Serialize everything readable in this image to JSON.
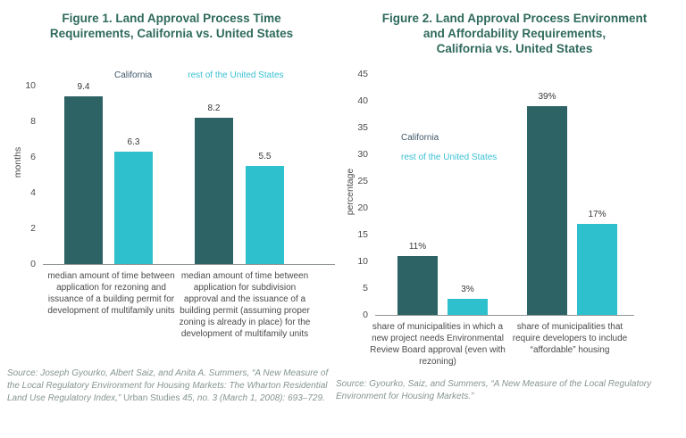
{
  "colors": {
    "california_bar": "#2e6366",
    "rest_bar": "#2fc0cd",
    "title_text": "#2f6a5c",
    "legend_california_text": "#41586a",
    "legend_rest_text": "#3bc1d3",
    "source_text": "#85968f",
    "axis_line": "#8f9695"
  },
  "chart_data": [
    {
      "type": "bar",
      "title": "Figure 1. Land Approval Process Time\nRequirements, California vs. United States",
      "ylabel": "months",
      "ylim": [
        0,
        10
      ],
      "ytick_step": 2,
      "grid": false,
      "legend": [
        "California",
        "rest of the United States"
      ],
      "legend_position": "top-horizontal",
      "categories": [
        "median amount of time between application for rezoning and issuance of a building permit for development of multifamily units",
        "median amount of time between application for subdivision approval and the issuance of a building permit (assuming proper zoning is already in place) for the development of multifamily units"
      ],
      "series": [
        {
          "name": "California",
          "color": "#2e6366",
          "values": [
            9.4,
            8.2
          ],
          "value_labels": [
            "9.4",
            "8.2"
          ]
        },
        {
          "name": "rest of the United States",
          "color": "#2fc0cd",
          "values": [
            6.3,
            5.5
          ],
          "value_labels": [
            "6.3",
            "5.5"
          ]
        }
      ],
      "source": {
        "italic1": "Source: Joseph Gyourko, Albert Saiz, and Anita A. Summers, “A New Measure of the Local Regulatory Environment for Housing Markets: The Wharton Residential Land Use Regulatory Index,” ",
        "roman": "Urban Studies",
        "italic2": " 45, no. 3 (March 1, 2008): 693–729."
      }
    },
    {
      "type": "bar",
      "title": "Figure 2. Land Approval Process Environment\nand Affordability Requirements,\nCalifornia vs. United States",
      "ylabel": "percentage",
      "ylim": [
        0,
        45
      ],
      "ytick_step": 5,
      "grid": false,
      "legend": [
        "California",
        "rest of the United States"
      ],
      "legend_position": "middle-left-stacked",
      "categories": [
        "share of municipalities in which a new project needs Environmental Review Board approval (even with rezoning)",
        "share of municipalities that require developers to include “affordable” housing"
      ],
      "series": [
        {
          "name": "California",
          "color": "#2e6366",
          "values": [
            11,
            39
          ],
          "value_labels": [
            "11%",
            "39%"
          ]
        },
        {
          "name": "rest of the United States",
          "color": "#2fc0cd",
          "values": [
            3,
            17
          ],
          "value_labels": [
            "3%",
            "17%"
          ]
        }
      ],
      "source": {
        "italic1": "Source: Gyourko, Saiz, and Summers, “A New Measure of the Local Regulatory Environment for Housing Markets.”",
        "roman": "",
        "italic2": ""
      }
    }
  ]
}
